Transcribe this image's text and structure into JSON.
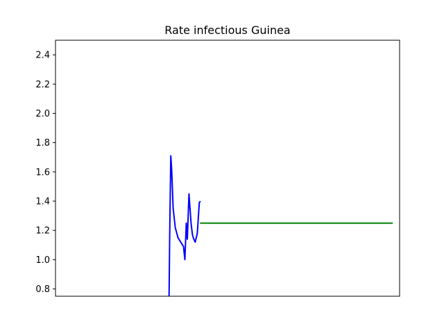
{
  "chart_data": {
    "type": "line",
    "title": "Rate infectious Guinea",
    "xlabel": "",
    "ylabel": "",
    "ylim": [
      0.75,
      2.5
    ],
    "xlim": [
      0,
      100
    ],
    "xticks_visible": false,
    "yticks": [
      "0.8",
      "1.0",
      "1.2",
      "1.4",
      "1.6",
      "1.8",
      "2.0",
      "2.2",
      "2.4"
    ],
    "grid": false,
    "series": [
      {
        "color": "#0000ff",
        "x": [
          33.0,
          33.2,
          33.5,
          33.8,
          34.2,
          34.8,
          35.6,
          36.4,
          37.2,
          37.6,
          38.0,
          38.3,
          38.8,
          39.4,
          39.8,
          40.2,
          40.6,
          41.2,
          41.8,
          42.1
        ],
        "y": [
          0.75,
          1.2,
          1.71,
          1.6,
          1.35,
          1.22,
          1.15,
          1.12,
          1.09,
          1.0,
          1.25,
          1.14,
          1.45,
          1.25,
          1.17,
          1.14,
          1.12,
          1.18,
          1.39,
          1.4
        ]
      },
      {
        "color": "#008000",
        "x": [
          42.0,
          98.0
        ],
        "y": [
          1.25,
          1.25
        ]
      }
    ]
  }
}
